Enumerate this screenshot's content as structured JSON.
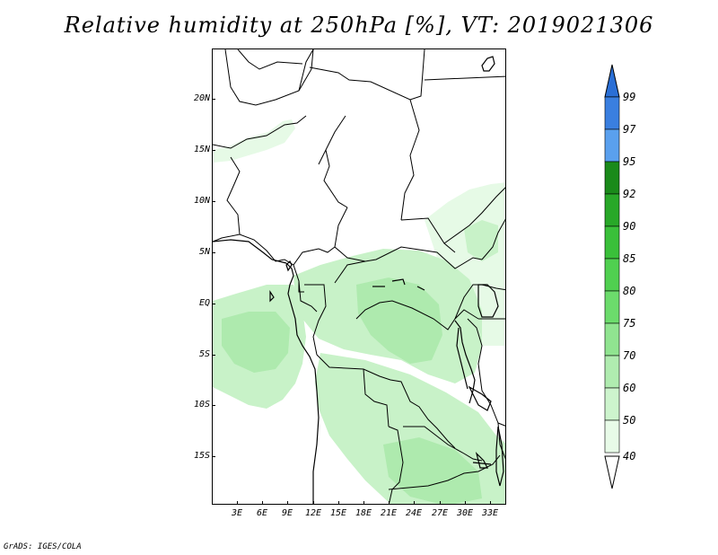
{
  "title": "Relative humidity at 250hPa [%], VT: 2019021306",
  "credit": "GrADS: IGES/COLA",
  "lat_labels": [
    "20N",
    "15N",
    "10N",
    "5N",
    "EQ",
    "5S",
    "10S",
    "15S"
  ],
  "lon_labels": [
    "3E",
    "6E",
    "9E",
    "12E",
    "15E",
    "18E",
    "21E",
    "24E",
    "27E",
    "30E",
    "33E"
  ],
  "colorbar": {
    "levels": [
      "99",
      "97",
      "95",
      "92",
      "90",
      "85",
      "80",
      "75",
      "70",
      "60",
      "50",
      "40"
    ],
    "colors": [
      "#2a6fd6",
      "#3a7fe0",
      "#5aa0ee",
      "#1a8a1a",
      "#28a828",
      "#3ac03a",
      "#50d050",
      "#6cdc6c",
      "#90e490",
      "#b0ecb0",
      "#cdf4cd",
      "#e8fbe8"
    ]
  },
  "map": {
    "domain": {
      "lon": [
        0.5,
        35
      ],
      "lat": [
        -20,
        24.5
      ]
    },
    "humidity_colors": {
      "low": "#e6fae6",
      "mid": "#c8f2c8",
      "high": "#aeeaae"
    }
  }
}
